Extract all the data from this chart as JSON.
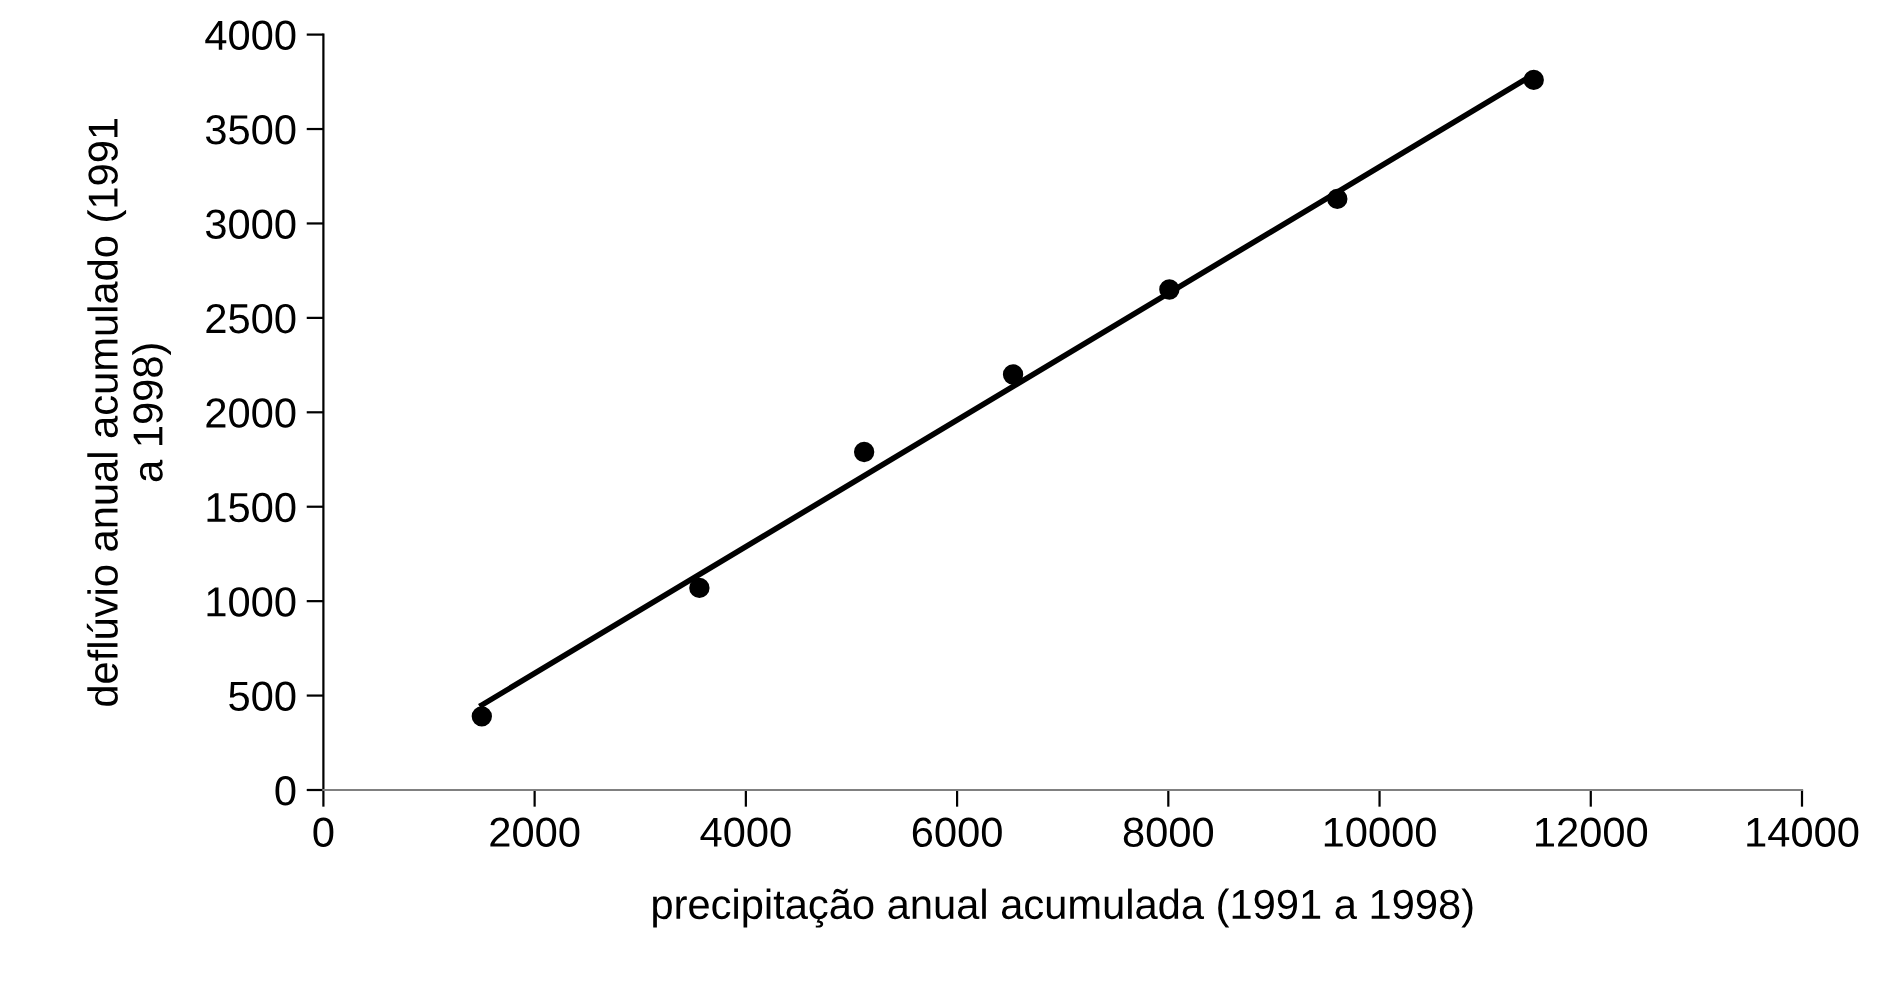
{
  "chart_data": {
    "type": "scatter",
    "xlabel": "precipitação anual acumulada (1991 a 1998)",
    "ylabel": "deflúvio anual acumulado (1991\na 1998)",
    "x": [
      1500,
      3560,
      5120,
      6530,
      8010,
      9600,
      11460
    ],
    "series": [
      {
        "color": "#000000",
        "marker": "circle",
        "values": [
          390,
          1070,
          1790,
          2200,
          2650,
          3130,
          3760
        ]
      },
      {
        "type": "line",
        "color": "#000000",
        "marker": "none",
        "x": [
          1500,
          11460
        ],
        "values": [
          450,
          3790
        ]
      }
    ],
    "xlim": [
      0,
      14000
    ],
    "xticks": [
      0,
      2000,
      4000,
      6000,
      8000,
      10000,
      12000,
      14000
    ],
    "ylim": [
      0,
      4000
    ],
    "yticks": [
      0,
      500,
      1000,
      1500,
      2000,
      2500,
      3000,
      3500,
      4000
    ],
    "grid": false,
    "legend": false
  }
}
